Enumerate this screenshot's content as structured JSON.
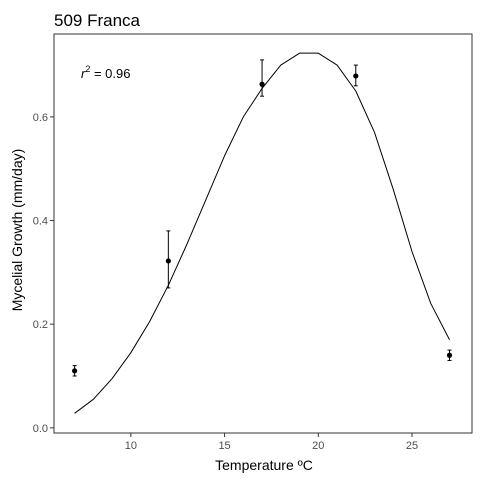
{
  "chart_data": {
    "type": "scatter",
    "title": "509 Franca",
    "xlabel": "Temperature ºC",
    "ylabel": "Mycelial Growth (mm/day)",
    "xlim": [
      5.9,
      28.2
    ],
    "ylim": [
      -0.01,
      0.76
    ],
    "xticks": [
      10,
      15,
      20,
      25
    ],
    "yticks": [
      0.0,
      0.2,
      0.4,
      0.6
    ],
    "grid": false,
    "annotation": {
      "symbol": "r",
      "superscript": "2",
      "text": " = 0.96"
    },
    "points": [
      {
        "x": 7,
        "y": 0.11,
        "err_low": 0.1,
        "err_high": 0.12
      },
      {
        "x": 12,
        "y": 0.322,
        "err_low": 0.27,
        "err_high": 0.38
      },
      {
        "x": 17,
        "y": 0.663,
        "err_low": 0.64,
        "err_high": 0.71
      },
      {
        "x": 22,
        "y": 0.679,
        "err_low": 0.66,
        "err_high": 0.7
      },
      {
        "x": 27,
        "y": 0.14,
        "err_low": 0.13,
        "err_high": 0.15
      }
    ],
    "fit_curve": {
      "x": [
        7,
        8,
        9,
        10,
        11,
        12,
        13,
        14,
        15,
        16,
        17,
        18,
        19,
        20,
        21,
        22,
        23,
        24,
        25,
        26,
        27
      ],
      "y": [
        0.028,
        0.055,
        0.095,
        0.145,
        0.205,
        0.275,
        0.355,
        0.44,
        0.525,
        0.6,
        0.655,
        0.7,
        0.723,
        0.723,
        0.7,
        0.65,
        0.57,
        0.46,
        0.34,
        0.24,
        0.17
      ]
    },
    "colors": {
      "points": "#000000",
      "curve": "#000000",
      "axes": "#333333"
    }
  }
}
